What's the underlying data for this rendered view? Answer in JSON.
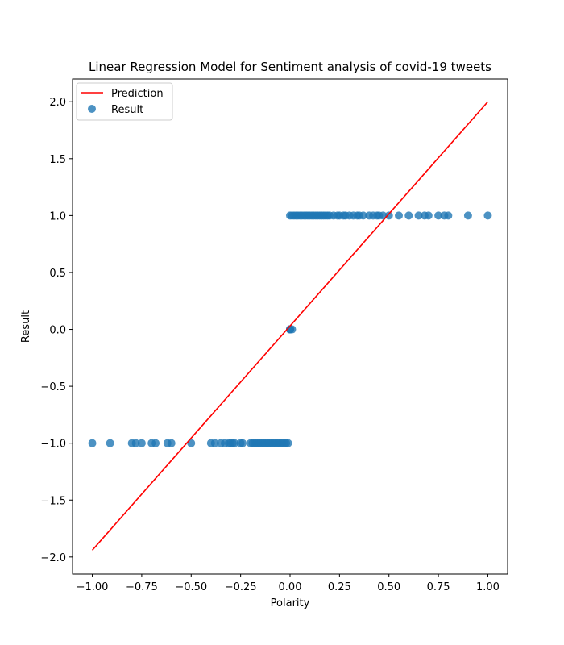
{
  "chart_data": {
    "type": "scatter",
    "title": "Linear Regression Model for Sentiment analysis of covid-19 tweets",
    "xlabel": "Polarity",
    "ylabel": "Result",
    "xlim": [
      -1.1,
      1.1
    ],
    "ylim": [
      -2.15,
      2.2
    ],
    "xticks": [
      -1.0,
      -0.75,
      -0.5,
      -0.25,
      0.0,
      0.25,
      0.5,
      0.75,
      1.0
    ],
    "xtick_labels": [
      "−1.00",
      "−0.75",
      "−0.50",
      "−0.25",
      "0.00",
      "0.25",
      "0.50",
      "0.75",
      "1.00"
    ],
    "yticks": [
      -2.0,
      -1.5,
      -1.0,
      -0.5,
      0.0,
      0.5,
      1.0,
      1.5,
      2.0
    ],
    "ytick_labels": [
      "−2.0",
      "−1.5",
      "−1.0",
      "−0.5",
      "0.0",
      "0.5",
      "1.0",
      "1.5",
      "2.0"
    ],
    "grid": false,
    "legend": {
      "position": "top-left",
      "entries": [
        "Prediction",
        "Result"
      ]
    },
    "colors": {
      "prediction": "#ff0000",
      "result": "#1f77b4"
    },
    "series": [
      {
        "name": "Prediction",
        "kind": "line",
        "x": [
          -1.0,
          1.0
        ],
        "y": [
          -1.94,
          2.0
        ]
      },
      {
        "name": "Result",
        "kind": "scatter",
        "x": [
          -1.0,
          -0.91,
          -0.8,
          -0.78,
          -0.75,
          -0.7,
          -0.68,
          -0.62,
          -0.6,
          -0.5,
          -0.4,
          -0.38,
          -0.35,
          -0.33,
          -0.31,
          -0.3,
          -0.29,
          -0.28,
          -0.25,
          -0.24,
          -0.2,
          -0.19,
          -0.18,
          -0.17,
          -0.16,
          -0.15,
          -0.14,
          -0.13,
          -0.12,
          -0.11,
          -0.1,
          -0.09,
          -0.08,
          -0.07,
          -0.06,
          -0.05,
          -0.04,
          -0.03,
          -0.02,
          -0.01,
          0.0,
          0.0,
          0.0,
          0.0,
          0.01,
          0.0,
          0.01,
          0.02,
          0.03,
          0.04,
          0.05,
          0.06,
          0.07,
          0.08,
          0.09,
          0.1,
          0.11,
          0.12,
          0.13,
          0.14,
          0.15,
          0.16,
          0.17,
          0.18,
          0.19,
          0.2,
          0.22,
          0.24,
          0.25,
          0.27,
          0.28,
          0.3,
          0.32,
          0.34,
          0.35,
          0.37,
          0.4,
          0.42,
          0.44,
          0.45,
          0.47,
          0.5,
          0.55,
          0.6,
          0.65,
          0.68,
          0.7,
          0.75,
          0.78,
          0.8,
          0.9,
          1.0
        ],
        "y": [
          -1,
          -1,
          -1,
          -1,
          -1,
          -1,
          -1,
          -1,
          -1,
          -1,
          -1,
          -1,
          -1,
          -1,
          -1,
          -1,
          -1,
          -1,
          -1,
          -1,
          -1,
          -1,
          -1,
          -1,
          -1,
          -1,
          -1,
          -1,
          -1,
          -1,
          -1,
          -1,
          -1,
          -1,
          -1,
          -1,
          -1,
          -1,
          -1,
          -1,
          0,
          0,
          0,
          0,
          0,
          1,
          1,
          1,
          1,
          1,
          1,
          1,
          1,
          1,
          1,
          1,
          1,
          1,
          1,
          1,
          1,
          1,
          1,
          1,
          1,
          1,
          1,
          1,
          1,
          1,
          1,
          1,
          1,
          1,
          1,
          1,
          1,
          1,
          1,
          1,
          1,
          1,
          1,
          1,
          1,
          1,
          1,
          1,
          1,
          1,
          1,
          1
        ]
      }
    ]
  }
}
